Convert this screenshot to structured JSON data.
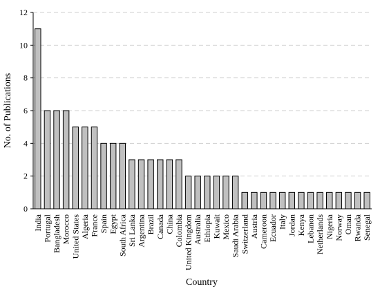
{
  "chart_data": {
    "type": "bar",
    "xlabel": "Country",
    "ylabel": "No. of Publications",
    "ylim": [
      0,
      12
    ],
    "yticks": [
      0,
      2,
      4,
      6,
      8,
      10,
      12
    ],
    "grid": "horizontal dashed",
    "bar_color": "#c0c0c0",
    "bar_edge_color": "#000000",
    "categories": [
      "India",
      "Portugal",
      "Bangladesh",
      "Morocco",
      "United States",
      "Algeria",
      "France",
      "Spain",
      "Egypt",
      "South Africa",
      "Sri Lanka",
      "Argentina",
      "Brazil",
      "Canada",
      "China",
      "Colombia",
      "United Kingdom",
      "Australia",
      "Ethiopia",
      "Kuwait",
      "Mexico",
      "Saudi Arabia",
      "Switzerland",
      "Austria",
      "Cameroon",
      "Ecuador",
      "Italy",
      "Jordan",
      "Kenya",
      "Lebanon",
      "Netherlands",
      "Nigeria",
      "Norway",
      "Oman",
      "Rwanda",
      "Senegal"
    ],
    "values": [
      11,
      6,
      6,
      6,
      5,
      5,
      5,
      4,
      4,
      4,
      3,
      3,
      3,
      3,
      3,
      3,
      2,
      2,
      2,
      2,
      2,
      2,
      1,
      1,
      1,
      1,
      1,
      1,
      1,
      1,
      1,
      1,
      1,
      1,
      1,
      1
    ]
  }
}
